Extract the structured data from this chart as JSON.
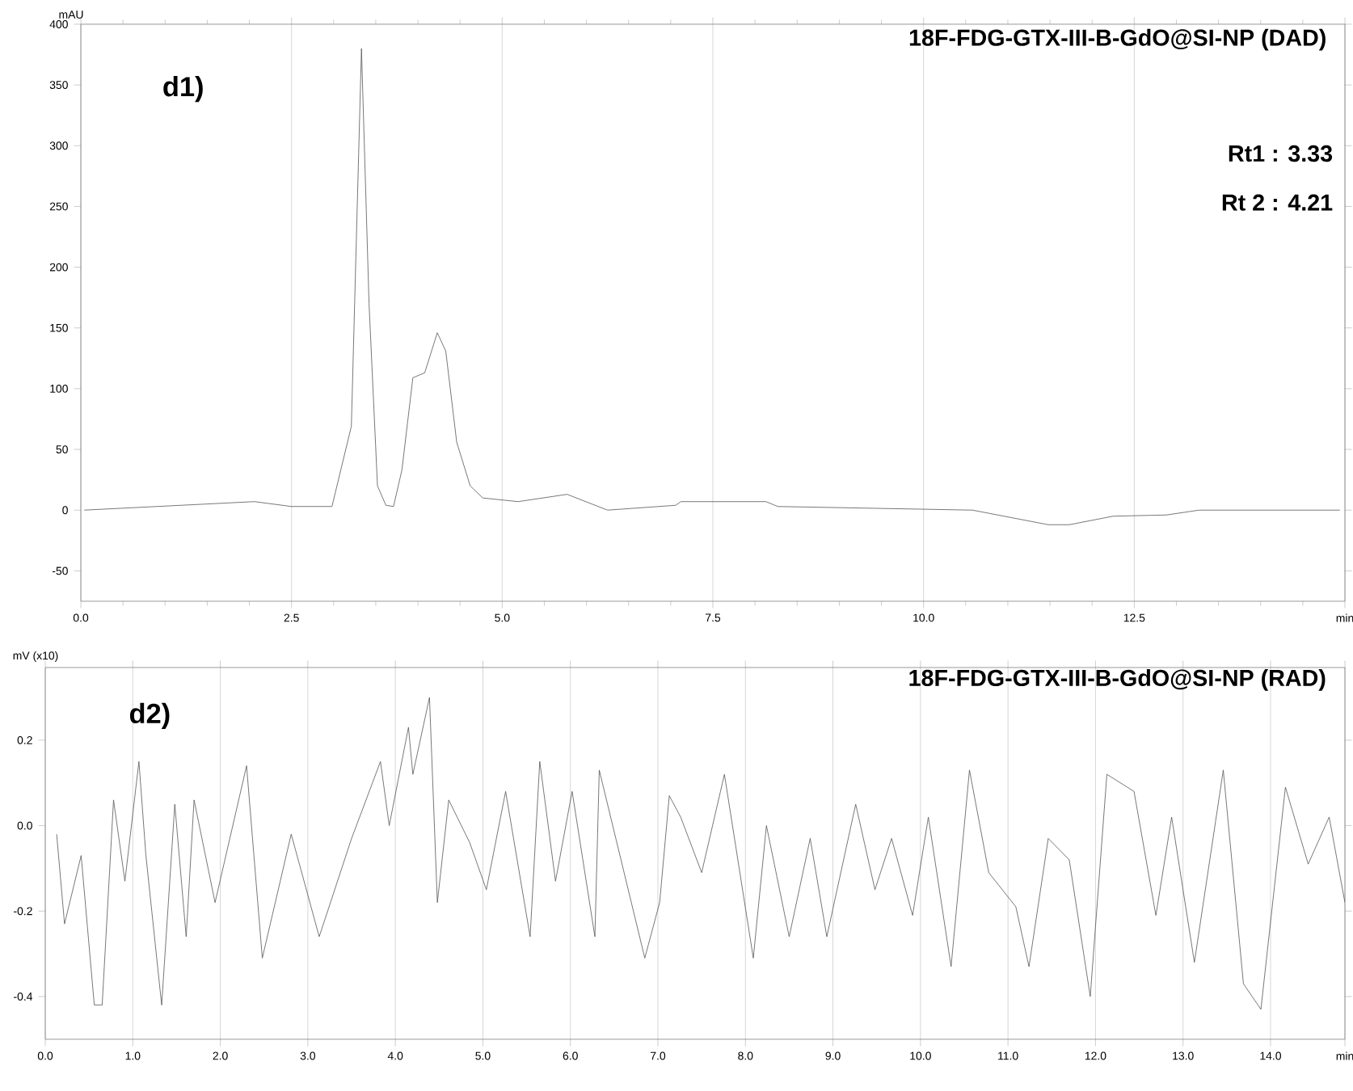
{
  "chart_data": [
    {
      "type": "line",
      "title": "18F-FDG-GTX-III-B-GdO@SI-NP   (DAD)",
      "ylabel": "mAU",
      "annotations": [
        "d1)",
        "Rt1 : 3.33",
        "Rt 2 : 4.21"
      ],
      "x": [
        0.04,
        2.06,
        2.5,
        2.98,
        3.21,
        3.33,
        3.42,
        3.52,
        3.62,
        3.71,
        3.81,
        3.94,
        4.08,
        4.23,
        4.33,
        4.46,
        4.62,
        4.77,
        5.19,
        5.77,
        6.25,
        7.06,
        7.12,
        8.13,
        8.27,
        10.58,
        11.48,
        11.73,
        12.25,
        12.88,
        13.27,
        14.94
      ],
      "values": [
        0,
        7,
        3,
        3,
        69,
        380,
        170,
        20,
        4,
        3,
        33,
        109,
        113,
        146,
        131,
        56,
        20,
        10,
        7,
        13,
        0,
        4,
        7,
        7,
        3,
        0,
        -12,
        -12,
        -5,
        -4,
        0,
        0
      ],
      "color": "#555555",
      "grid": "x",
      "xlim": [
        0,
        15
      ],
      "xticks": [
        {
          "value": 0,
          "label": "0.0"
        },
        {
          "value": 2.5,
          "label": "2.5"
        },
        {
          "value": 5,
          "label": "5.0"
        },
        {
          "value": 7.5,
          "label": "7.5"
        },
        {
          "value": 10,
          "label": "10.0"
        },
        {
          "value": 12.5,
          "label": "12.5"
        },
        {
          "value": 15,
          "label": "min"
        }
      ],
      "ylim": [
        -75,
        400
      ],
      "yticks": [
        -50,
        0,
        50,
        100,
        150,
        200,
        250,
        300,
        350,
        400
      ]
    },
    {
      "type": "line",
      "title": "18F-FDG-GTX-III-B-GdO@SI-NP (RAD)",
      "ylabel": "mV (x10)",
      "annotations": [
        "d2)"
      ],
      "x": [
        0.13,
        0.22,
        0.41,
        0.56,
        0.65,
        0.78,
        0.91,
        1.07,
        1.15,
        1.33,
        1.48,
        1.61,
        1.7,
        1.94,
        2.3,
        2.48,
        2.81,
        3.13,
        3.5,
        3.83,
        3.93,
        4.15,
        4.2,
        4.39,
        4.48,
        4.61,
        4.85,
        5.04,
        5.26,
        5.54,
        5.65,
        5.83,
        6.02,
        6.28,
        6.33,
        6.85,
        7.02,
        7.13,
        7.26,
        7.5,
        7.76,
        8.09,
        8.24,
        8.5,
        8.74,
        8.93,
        9.26,
        9.48,
        9.67,
        9.91,
        10.09,
        10.35,
        10.56,
        10.78,
        11.09,
        11.24,
        11.46,
        11.7,
        11.94,
        12.13,
        12.44,
        12.69,
        12.87,
        13.13,
        13.46,
        13.69,
        13.89,
        14.17,
        14.43,
        14.67,
        14.85
      ],
      "values": [
        -0.02,
        -0.23,
        -0.07,
        -0.42,
        -0.42,
        0.06,
        -0.13,
        0.15,
        -0.07,
        -0.42,
        0.05,
        -0.26,
        0.06,
        -0.18,
        0.14,
        -0.31,
        -0.02,
        -0.26,
        -0.03,
        0.15,
        0.0,
        0.23,
        0.12,
        0.3,
        -0.18,
        0.06,
        -0.04,
        -0.15,
        0.08,
        -0.26,
        0.15,
        -0.13,
        0.08,
        -0.26,
        0.13,
        -0.31,
        -0.18,
        0.07,
        0.02,
        -0.11,
        0.12,
        -0.31,
        0.0,
        -0.26,
        -0.03,
        -0.26,
        0.05,
        -0.15,
        -0.03,
        -0.21,
        0.02,
        -0.33,
        0.13,
        -0.11,
        -0.19,
        -0.33,
        -0.03,
        -0.08,
        -0.4,
        0.12,
        0.08,
        -0.21,
        0.02,
        -0.32,
        0.13,
        -0.37,
        -0.43,
        0.09,
        -0.09,
        0.02,
        -0.18
      ],
      "color": "#555555",
      "grid": "x",
      "xlim": [
        0,
        14.85
      ],
      "xticks": [
        {
          "value": 0,
          "label": "0.0"
        },
        {
          "value": 1,
          "label": "1.0"
        },
        {
          "value": 2,
          "label": "2.0"
        },
        {
          "value": 3,
          "label": "3.0"
        },
        {
          "value": 4,
          "label": "4.0"
        },
        {
          "value": 5,
          "label": "5.0"
        },
        {
          "value": 6,
          "label": "6.0"
        },
        {
          "value": 7,
          "label": "7.0"
        },
        {
          "value": 8,
          "label": "8.0"
        },
        {
          "value": 9,
          "label": "9.0"
        },
        {
          "value": 10,
          "label": "10.0"
        },
        {
          "value": 11,
          "label": "11.0"
        },
        {
          "value": 12,
          "label": "12.0"
        },
        {
          "value": 13,
          "label": "13.0"
        },
        {
          "value": 14,
          "label": "14.0"
        },
        {
          "value": 14.85,
          "label": "min"
        }
      ],
      "ylim": [
        -0.5,
        0.37
      ],
      "yticks": [
        -0.4,
        -0.2,
        {
          "value": 0,
          "label": "0.0"
        },
        0.2
      ]
    }
  ]
}
